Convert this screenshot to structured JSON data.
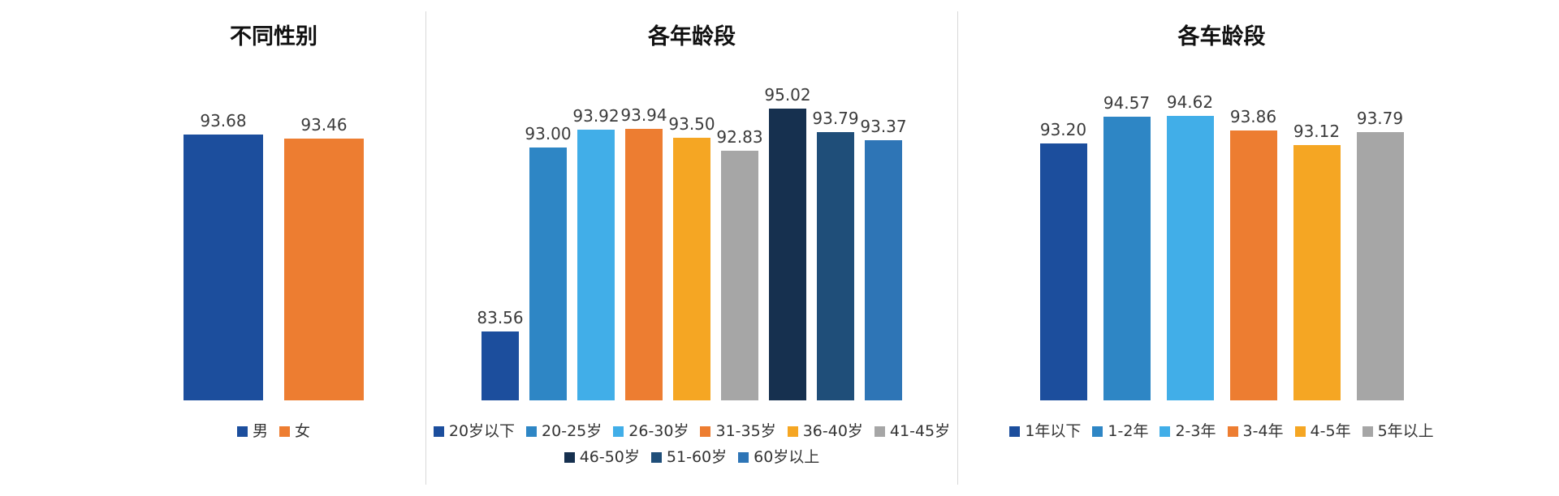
{
  "style": {
    "background": "#ffffff",
    "divider_color": "#d9d9d9",
    "value_label_color": "#3b3b3b",
    "legend_text_color": "#333333",
    "title_color": "#111111"
  },
  "chart_data": [
    {
      "type": "bar",
      "title": "不同性别",
      "ylim": [
        80,
        96
      ],
      "grid": false,
      "legend_position": "bottom",
      "categories": [
        "男",
        "女"
      ],
      "values": [
        93.68,
        93.46
      ],
      "colors": [
        "#1c4e9d",
        "#ed7d31"
      ]
    },
    {
      "type": "bar",
      "title": "各年龄段",
      "ylim": [
        80,
        96
      ],
      "grid": false,
      "legend_position": "bottom",
      "categories": [
        "20岁以下",
        "20-25岁",
        "26-30岁",
        "31-35岁",
        "36-40岁",
        "41-45岁",
        "46-50岁",
        "51-60岁",
        "60岁以上"
      ],
      "values": [
        83.56,
        93.0,
        93.92,
        93.94,
        93.5,
        92.83,
        95.02,
        93.79,
        93.37
      ],
      "colors": [
        "#1c4e9d",
        "#2e86c5",
        "#41aee8",
        "#ed7d31",
        "#f5a623",
        "#a6a6a6",
        "#16304f",
        "#1f4e79",
        "#2e75b6"
      ]
    },
    {
      "type": "bar",
      "title": "各车龄段",
      "ylim": [
        80,
        96
      ],
      "grid": false,
      "legend_position": "bottom",
      "categories": [
        "1年以下",
        "1-2年",
        "2-3年",
        "3-4年",
        "4-5年",
        "5年以上"
      ],
      "values": [
        93.2,
        94.57,
        94.62,
        93.86,
        93.12,
        93.79
      ],
      "colors": [
        "#1c4e9d",
        "#2e86c5",
        "#41aee8",
        "#ed7d31",
        "#f5a623",
        "#a6a6a6"
      ]
    }
  ]
}
